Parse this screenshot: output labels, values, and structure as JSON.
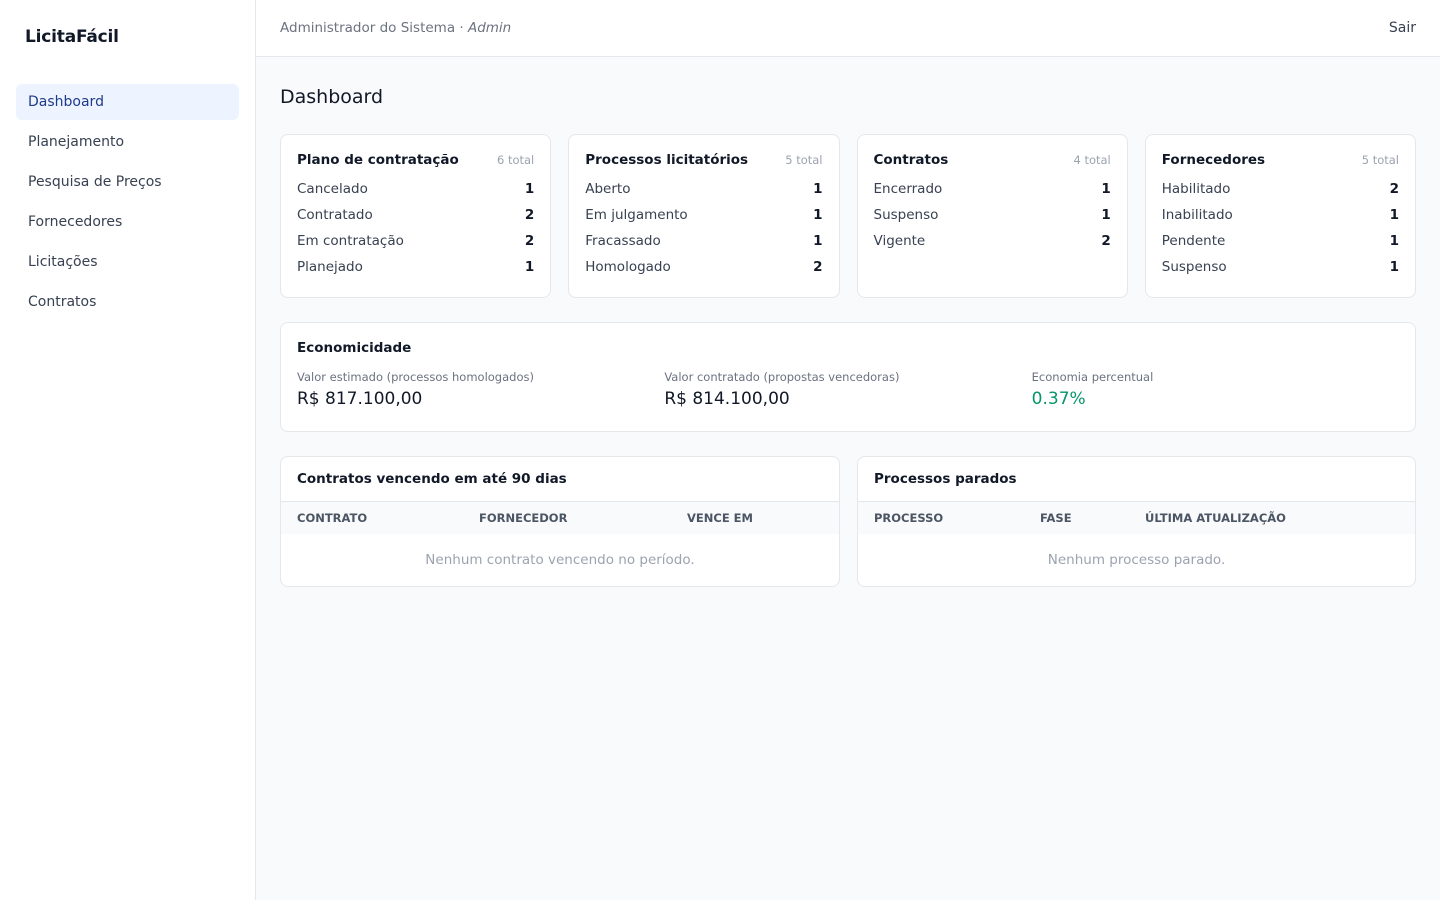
{
  "app": {
    "brand": "LicitaFácil"
  },
  "sidebar": {
    "items": [
      {
        "label": "Dashboard"
      },
      {
        "label": "Planejamento"
      },
      {
        "label": "Pesquisa de Preços"
      },
      {
        "label": "Fornecedores"
      },
      {
        "label": "Licitações"
      },
      {
        "label": "Contratos"
      }
    ]
  },
  "topbar": {
    "user_name": "Administrador do Sistema",
    "separator": " · ",
    "user_role": "Admin",
    "logout": "Sair"
  },
  "page": {
    "title": "Dashboard"
  },
  "cards": [
    {
      "title": "Plano de contratação",
      "total": "6 total",
      "rows": [
        {
          "label": "Cancelado",
          "value": "1"
        },
        {
          "label": "Contratado",
          "value": "2"
        },
        {
          "label": "Em contratação",
          "value": "2"
        },
        {
          "label": "Planejado",
          "value": "1"
        }
      ]
    },
    {
      "title": "Processos licitatórios",
      "total": "5 total",
      "rows": [
        {
          "label": "Aberto",
          "value": "1"
        },
        {
          "label": "Em julgamento",
          "value": "1"
        },
        {
          "label": "Fracassado",
          "value": "1"
        },
        {
          "label": "Homologado",
          "value": "2"
        }
      ]
    },
    {
      "title": "Contratos",
      "total": "4 total",
      "rows": [
        {
          "label": "Encerrado",
          "value": "1"
        },
        {
          "label": "Suspenso",
          "value": "1"
        },
        {
          "label": "Vigente",
          "value": "2"
        }
      ]
    },
    {
      "title": "Fornecedores",
      "total": "5 total",
      "rows": [
        {
          "label": "Habilitado",
          "value": "2"
        },
        {
          "label": "Inabilitado",
          "value": "1"
        },
        {
          "label": "Pendente",
          "value": "1"
        },
        {
          "label": "Suspenso",
          "value": "1"
        }
      ]
    }
  ],
  "economicidade": {
    "title": "Economicidade",
    "estimated_label": "Valor estimado (processos homologados)",
    "estimated_value": "R$ 817.100,00",
    "contracted_label": "Valor contratado (propostas vencedoras)",
    "contracted_value": "R$ 814.100,00",
    "savings_label": "Economia percentual",
    "savings_value": "0.37%",
    "savings_color": "#059669"
  },
  "expiring": {
    "title": "Contratos vencendo em até 90 dias",
    "columns": [
      "CONTRATO",
      "FORNECEDOR",
      "VENCE EM"
    ],
    "empty": "Nenhum contrato vencendo no período."
  },
  "stalled": {
    "title": "Processos parados",
    "columns": [
      "PROCESSO",
      "FASE",
      "ÚLTIMA ATUALIZAÇÃO"
    ],
    "empty": "Nenhum processo parado."
  },
  "colors": {
    "active_nav_bg": "#eef4ff",
    "active_nav_text": "#1e3a8a"
  }
}
